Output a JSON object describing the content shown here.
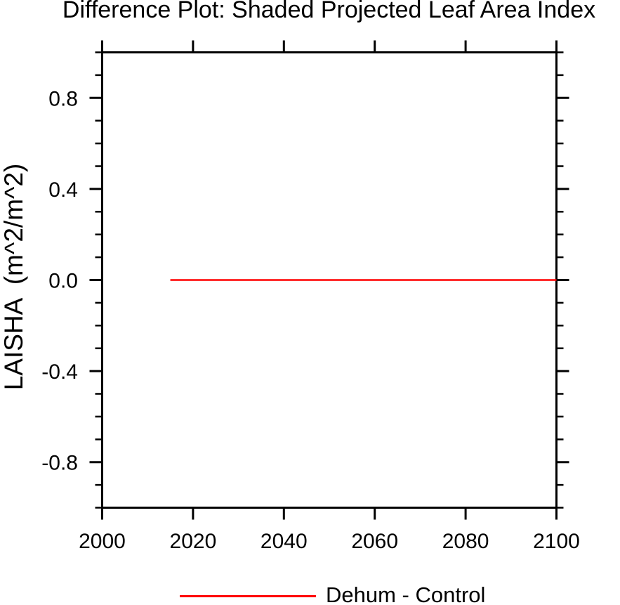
{
  "chart_data": {
    "type": "line",
    "title": "Difference Plot: Shaded Projected Leaf Area Index",
    "xlabel": "",
    "ylabel": "LAISHA  (m^2/m^2)",
    "xlim": [
      2000,
      2100
    ],
    "ylim": [
      -1.0,
      1.0
    ],
    "xticks": {
      "values": [
        2000,
        2020,
        2040,
        2060,
        2080,
        2100
      ],
      "labels": [
        "2000",
        "2020",
        "2040",
        "2060",
        "2080",
        "2100"
      ]
    },
    "yticks": {
      "values": [
        0.8,
        0.4,
        0.0,
        -0.4,
        -0.8
      ],
      "labels": [
        "0.8",
        "0.4",
        "0.0",
        "-0.4",
        "-0.8"
      ]
    },
    "y_minor_tick_step": 0.1,
    "grid": false,
    "legend_position": "bottom-center",
    "series": [
      {
        "name": "Dehum - Control",
        "color": "#ff0000",
        "x": [
          2015,
          2100
        ],
        "y": [
          0.0,
          0.0
        ]
      }
    ]
  },
  "colors": {
    "axis": "#000000",
    "background": "#ffffff",
    "line_red": "#ff0000"
  }
}
